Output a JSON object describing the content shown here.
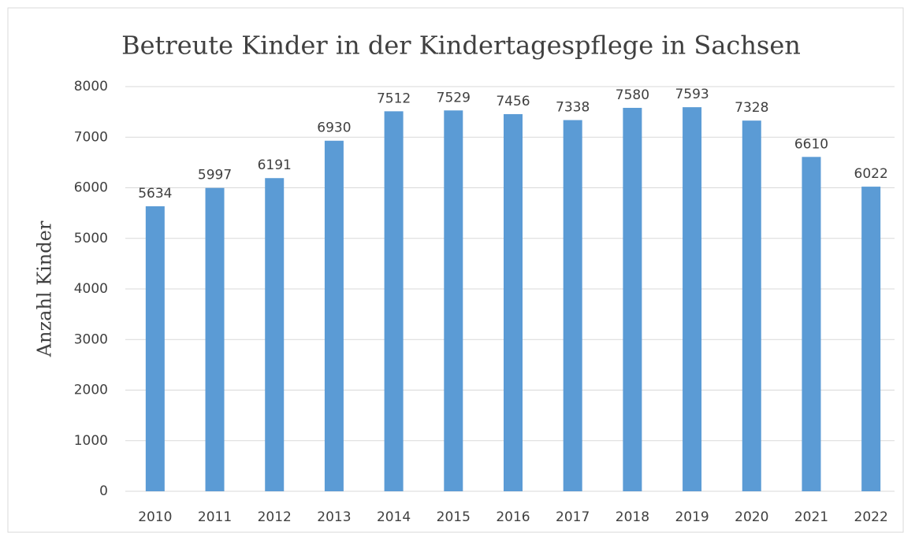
{
  "chart_data": {
    "type": "bar",
    "title": "Betreute Kinder in der Kindertagespflege in Sachsen",
    "y_label": "Anzahl Kinder",
    "categories": [
      "2010",
      "2011",
      "2012",
      "2013",
      "2014",
      "2015",
      "2016",
      "2017",
      "2018",
      "2019",
      "2020",
      "2021",
      "2022"
    ],
    "values": [
      5634,
      5997,
      6191,
      6930,
      7512,
      7529,
      7456,
      7338,
      7580,
      7593,
      7328,
      6610,
      6022
    ],
    "color": "#5b9bd5",
    "ylim": [
      0,
      8000
    ],
    "yticks": [
      0,
      1000,
      2000,
      3000,
      4000,
      5000,
      6000,
      7000,
      8000
    ],
    "grid": true,
    "data_labels": true
  }
}
